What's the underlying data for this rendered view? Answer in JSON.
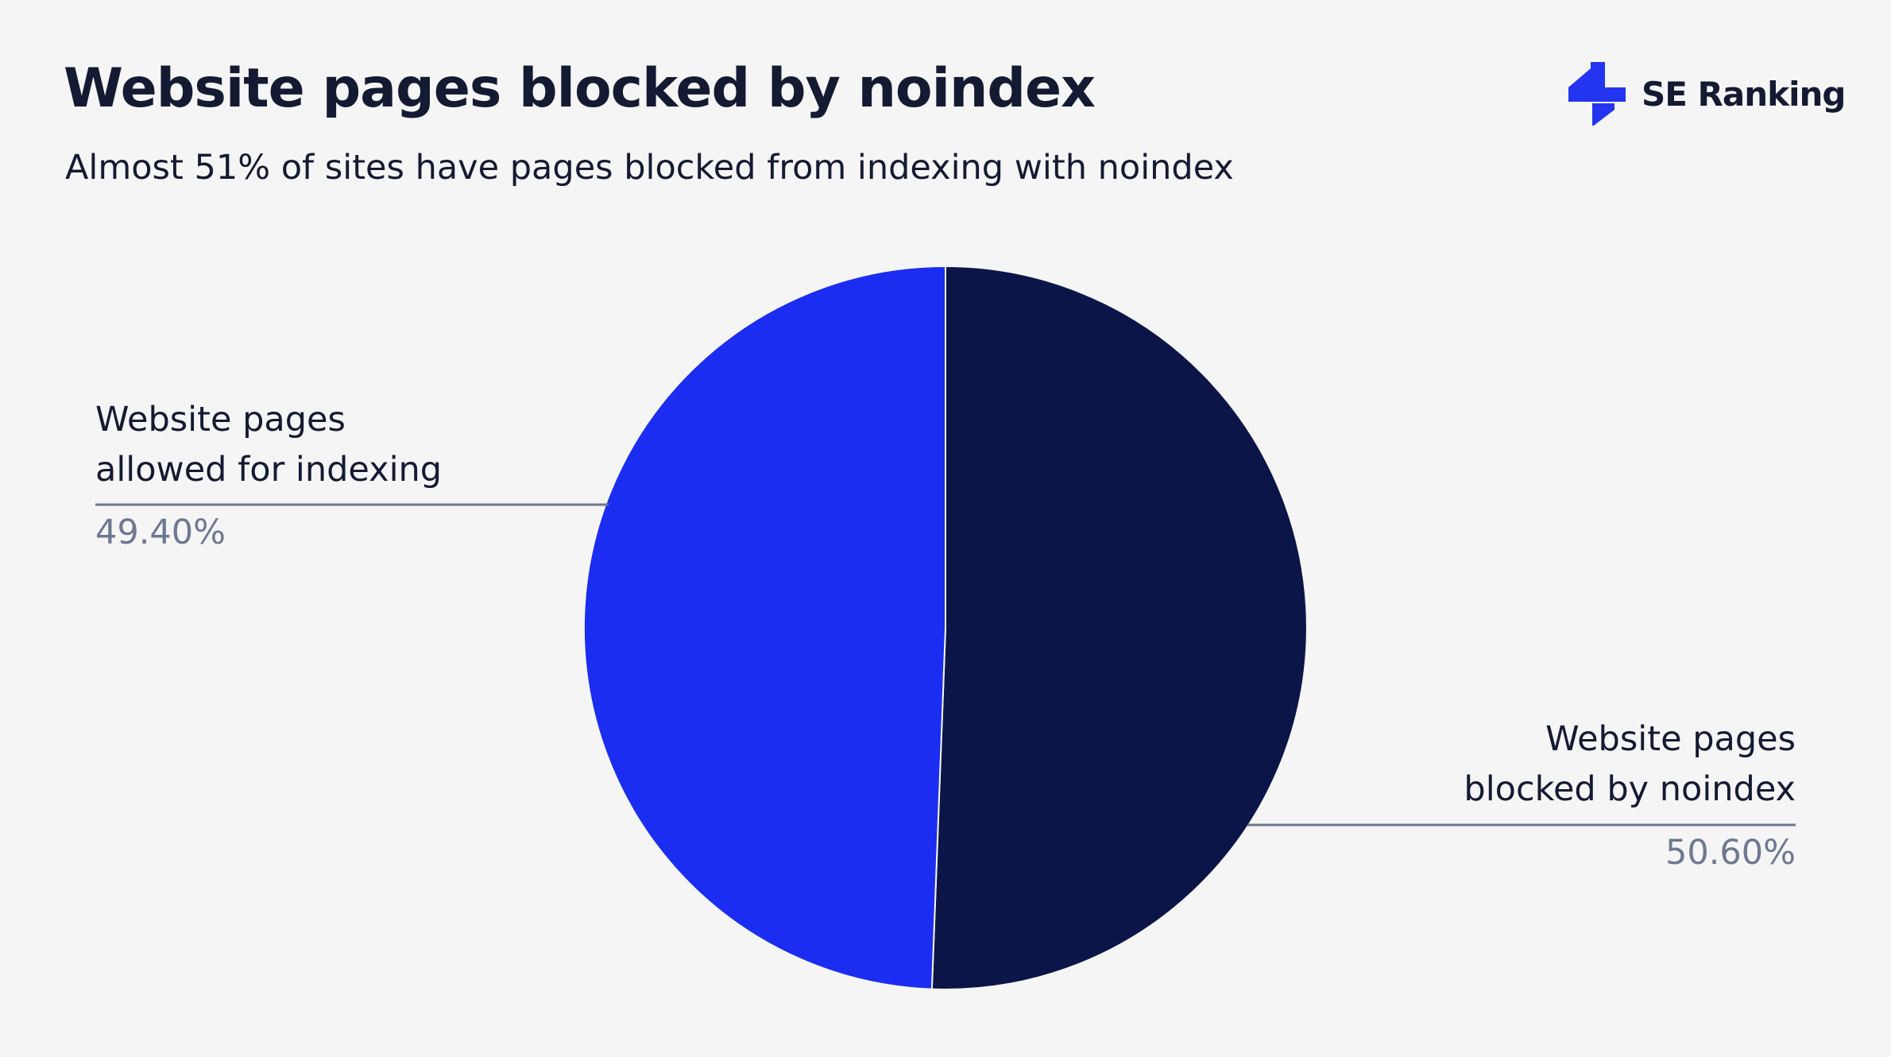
{
  "header": {
    "title": "Website pages blocked by noindex",
    "subtitle": "Almost 51% of sites have pages blocked from indexing with noindex"
  },
  "brand": {
    "name": "SE Ranking",
    "icon": "se-ranking-logo-icon",
    "color": "#2335f0"
  },
  "chart_data": {
    "type": "pie",
    "title": "Website pages blocked by noindex",
    "subtitle": "Almost 51% of sites have pages blocked from indexing with noindex",
    "slices": [
      {
        "label_line1": "Website pages",
        "label_line2": "blocked by noindex",
        "value": 50.6,
        "display": "50.60%",
        "color": "#0c1548"
      },
      {
        "label_line1": "Website pages",
        "label_line2": "allowed for indexing",
        "value": 49.4,
        "display": "49.40%",
        "color": "#1a2df0"
      }
    ],
    "start_angle": "12 o'clock",
    "direction": "clockwise",
    "legend": "none"
  }
}
